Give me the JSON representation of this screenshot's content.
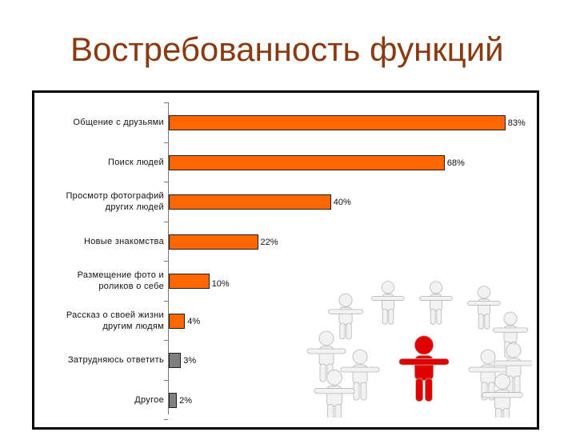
{
  "slide": {
    "title": "Востребованность функций"
  },
  "chart_data": {
    "type": "bar",
    "orientation": "horizontal",
    "categories": [
      "Общение с друзьями",
      "Поиск людей",
      "Просмотр фотографий\nдругих людей",
      "Новые знакомства",
      "Размещение фото и\nроликов о себе",
      "Рассказ о своей жизни\nдругим людям",
      "Затрудняюсь ответить",
      "Другое"
    ],
    "values": [
      83,
      68,
      40,
      22,
      10,
      4,
      3,
      2
    ],
    "value_labels": [
      "83%",
      "68%",
      "40%",
      "22%",
      "10%",
      "4%",
      "3%",
      "2%"
    ],
    "unit": "%",
    "xlim": [
      0,
      100
    ],
    "grid": false,
    "bar_colors": [
      "#FF6600",
      "#FF6600",
      "#FF6600",
      "#FF6600",
      "#FF6600",
      "#FF6600",
      "#7F7F7F",
      "#7F7F7F"
    ]
  },
  "illustration": {
    "icon": "people-circle-icon",
    "leader_color": "#E00000",
    "figure_color": "#F2F2F2"
  }
}
